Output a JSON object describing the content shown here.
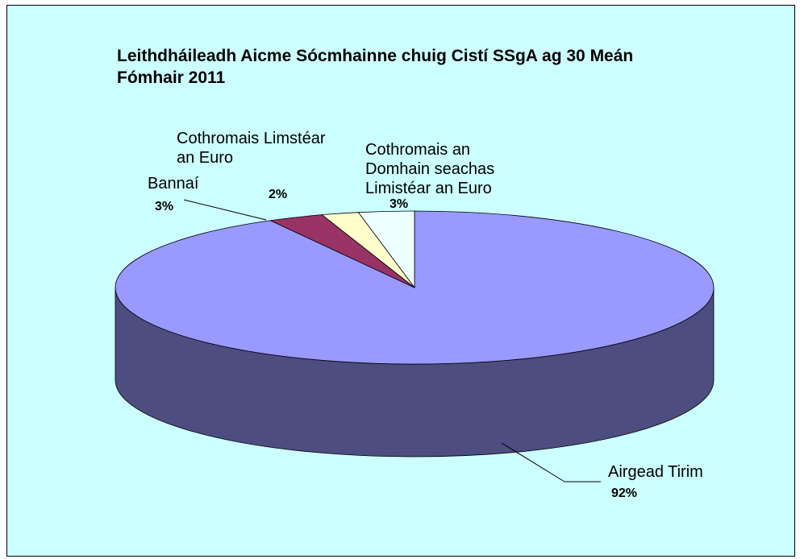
{
  "chart_data": {
    "type": "pie",
    "title": "Leithdháileadh Aicme Sócmhainne chuig Cistí SSgA ag 30 Meán Fómhair 2011",
    "categories": [
      "Airgead Tirim",
      "Bannaí",
      "Cothromais Limstéar an Euro",
      "Cothromais an Domhain seachas Limistéar an Euro"
    ],
    "values": [
      92,
      3,
      2,
      3
    ],
    "value_labels": [
      "92%",
      "3%",
      "2%",
      "3%"
    ],
    "colors": [
      "#9999ff",
      "#993366",
      "#ffffcc",
      "#eeffff"
    ]
  }
}
